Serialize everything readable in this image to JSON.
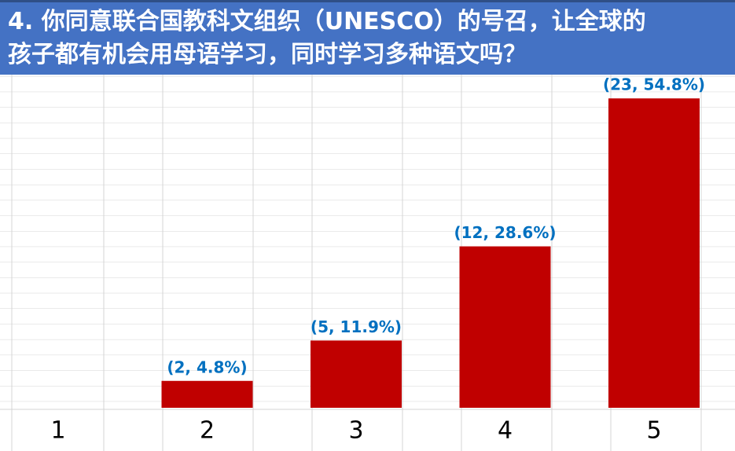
{
  "chart_data": {
    "type": "bar",
    "title": "4. 你同意联合国教科文组织（UNESCO）的号召，让全球的\n孩子都有机会用母语学习，同时学习多种语文吗？",
    "categories": [
      "1",
      "2",
      "3",
      "4",
      "5"
    ],
    "values": [
      0,
      2,
      5,
      12,
      23
    ],
    "value_labels": [
      null,
      "(2, 4.8%)",
      "(5, 11.9%)",
      "(12, 28.6%)",
      "(23, 54.8%)"
    ],
    "color": "#c00000",
    "label_color": "#0070c0",
    "ylim": [
      0,
      25
    ]
  }
}
